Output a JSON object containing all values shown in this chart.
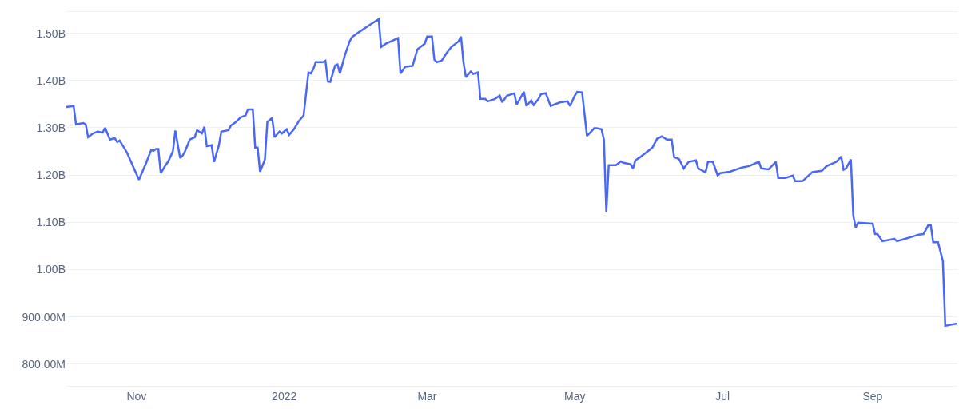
{
  "chart_data": {
    "type": "line",
    "x": [
      "2021-10-03",
      "2021-10-06",
      "2021-10-07",
      "2021-10-10",
      "2021-10-11",
      "2021-10-12",
      "2021-10-14",
      "2021-10-16",
      "2021-10-18",
      "2021-10-19",
      "2021-10-21",
      "2021-10-23",
      "2021-10-24",
      "2021-10-25",
      "2021-10-28",
      "2021-11-02",
      "2021-11-04",
      "2021-11-05",
      "2021-11-07",
      "2021-11-08",
      "2021-11-09",
      "2021-11-10",
      "2021-11-11",
      "2021-11-13",
      "2021-11-14",
      "2021-11-16",
      "2021-11-17",
      "2021-11-19",
      "2021-11-20",
      "2021-11-21",
      "2021-11-23",
      "2021-11-25",
      "2021-11-26",
      "2021-11-28",
      "2021-11-29",
      "2021-11-30",
      "2021-12-02",
      "2021-12-03",
      "2021-12-05",
      "2021-12-06",
      "2021-12-09",
      "2021-12-10",
      "2021-12-12",
      "2021-12-14",
      "2021-12-16",
      "2021-12-17",
      "2021-12-19",
      "2021-12-20",
      "2021-12-21",
      "2021-12-22",
      "2021-12-24",
      "2021-12-25",
      "2021-12-27",
      "2021-12-28",
      "2021-12-30",
      "2021-12-31",
      "2022-01-02",
      "2022-01-03",
      "2022-01-05",
      "2022-01-07",
      "2022-01-09",
      "2022-01-11",
      "2022-01-12",
      "2022-01-13",
      "2022-01-14",
      "2022-01-17",
      "2022-01-18",
      "2022-01-19",
      "2022-01-20",
      "2022-01-22",
      "2022-01-23",
      "2022-01-24",
      "2022-01-26",
      "2022-01-28",
      "2022-01-29",
      "2022-02-01",
      "2022-02-06",
      "2022-02-09",
      "2022-02-10",
      "2022-02-12",
      "2022-02-17",
      "2022-02-18",
      "2022-02-20",
      "2022-02-23",
      "2022-02-25",
      "2022-02-28",
      "2022-03-01",
      "2022-03-03",
      "2022-03-04",
      "2022-03-05",
      "2022-03-07",
      "2022-03-09",
      "2022-03-11",
      "2022-03-14",
      "2022-03-15",
      "2022-03-16",
      "2022-03-17",
      "2022-03-19",
      "2022-03-20",
      "2022-03-22",
      "2022-03-23",
      "2022-03-25",
      "2022-03-26",
      "2022-03-29",
      "2022-03-31",
      "2022-04-01",
      "2022-04-03",
      "2022-04-06",
      "2022-04-07",
      "2022-04-10",
      "2022-04-11",
      "2022-04-13",
      "2022-04-14",
      "2022-04-16",
      "2022-04-17",
      "2022-04-19",
      "2022-04-21",
      "2022-04-25",
      "2022-04-28",
      "2022-04-29",
      "2022-05-01",
      "2022-05-02",
      "2022-05-04",
      "2022-05-06",
      "2022-05-07",
      "2022-05-09",
      "2022-05-10",
      "2022-05-12",
      "2022-05-13",
      "2022-05-14",
      "2022-05-15",
      "2022-05-18",
      "2022-05-20",
      "2022-05-21",
      "2022-05-24",
      "2022-05-25",
      "2022-05-26",
      "2022-05-28",
      "2022-05-30",
      "2022-06-02",
      "2022-06-04",
      "2022-06-06",
      "2022-06-08",
      "2022-06-10",
      "2022-06-11",
      "2022-06-13",
      "2022-06-15",
      "2022-06-17",
      "2022-06-20",
      "2022-06-21",
      "2022-06-24",
      "2022-06-25",
      "2022-06-27",
      "2022-06-29",
      "2022-06-30",
      "2022-07-04",
      "2022-07-09",
      "2022-07-12",
      "2022-07-16",
      "2022-07-17",
      "2022-07-20",
      "2022-07-23",
      "2022-07-24",
      "2022-07-27",
      "2022-07-30",
      "2022-07-31",
      "2022-08-03",
      "2022-08-07",
      "2022-08-11",
      "2022-08-13",
      "2022-08-17",
      "2022-08-19",
      "2022-08-20",
      "2022-08-21",
      "2022-08-23",
      "2022-08-24",
      "2022-08-25",
      "2022-08-26",
      "2022-09-01",
      "2022-09-02",
      "2022-09-03",
      "2022-09-05",
      "2022-09-07",
      "2022-09-10",
      "2022-09-11",
      "2022-09-13",
      "2022-09-17",
      "2022-09-20",
      "2022-09-22",
      "2022-09-24",
      "2022-09-25",
      "2022-09-26",
      "2022-09-28",
      "2022-09-30",
      "2022-10-01",
      "2022-10-04",
      "2022-10-06"
    ],
    "values": [
      1344000000.0,
      1346000000.0,
      1307000000.0,
      1310000000.0,
      1307000000.0,
      1280000000.0,
      1288000000.0,
      1292000000.0,
      1290000000.0,
      1300000000.0,
      1275000000.0,
      1278000000.0,
      1270000000.0,
      1273000000.0,
      1248000000.0,
      1190000000.0,
      1214000000.0,
      1226000000.0,
      1253000000.0,
      1251000000.0,
      1255000000.0,
      1255000000.0,
      1204000000.0,
      1221000000.0,
      1228000000.0,
      1250000000.0,
      1294000000.0,
      1236000000.0,
      1241000000.0,
      1250000000.0,
      1275000000.0,
      1280000000.0,
      1295000000.0,
      1288000000.0,
      1302000000.0,
      1261000000.0,
      1263000000.0,
      1228000000.0,
      1263000000.0,
      1292000000.0,
      1295000000.0,
      1305000000.0,
      1312000000.0,
      1322000000.0,
      1326000000.0,
      1339000000.0,
      1339000000.0,
      1258000000.0,
      1258000000.0,
      1207000000.0,
      1233000000.0,
      1312000000.0,
      1321000000.0,
      1280000000.0,
      1292000000.0,
      1288000000.0,
      1297000000.0,
      1285000000.0,
      1297000000.0,
      1314000000.0,
      1326000000.0,
      1417000000.0,
      1415000000.0,
      1424000000.0,
      1439000000.0,
      1439000000.0,
      1442000000.0,
      1398000000.0,
      1397000000.0,
      1432000000.0,
      1434000000.0,
      1415000000.0,
      1453000000.0,
      1483000000.0,
      1492000000.0,
      1503000000.0,
      1520000000.0,
      1530000000.0,
      1471000000.0,
      1478000000.0,
      1490000000.0,
      1415000000.0,
      1429000000.0,
      1431000000.0,
      1466000000.0,
      1478000000.0,
      1493000000.0,
      1493000000.0,
      1444000000.0,
      1439000000.0,
      1442000000.0,
      1458000000.0,
      1471000000.0,
      1483000000.0,
      1493000000.0,
      1439000000.0,
      1407000000.0,
      1419000000.0,
      1414000000.0,
      1417000000.0,
      1361000000.0,
      1361000000.0,
      1356000000.0,
      1361000000.0,
      1368000000.0,
      1354000000.0,
      1368000000.0,
      1373000000.0,
      1349000000.0,
      1376000000.0,
      1346000000.0,
      1358000000.0,
      1348000000.0,
      1361000000.0,
      1371000000.0,
      1373000000.0,
      1346000000.0,
      1354000000.0,
      1356000000.0,
      1346000000.0,
      1368000000.0,
      1376000000.0,
      1375000000.0,
      1283000000.0,
      1288000000.0,
      1299000000.0,
      1299000000.0,
      1297000000.0,
      1275000000.0,
      1121000000.0,
      1221000000.0,
      1221000000.0,
      1229000000.0,
      1226000000.0,
      1223000000.0,
      1214000000.0,
      1231000000.0,
      1238000000.0,
      1246000000.0,
      1258000000.0,
      1277000000.0,
      1282000000.0,
      1275000000.0,
      1275000000.0,
      1238000000.0,
      1234000000.0,
      1214000000.0,
      1228000000.0,
      1231000000.0,
      1214000000.0,
      1206000000.0,
      1228000000.0,
      1228000000.0,
      1199000000.0,
      1204000000.0,
      1207000000.0,
      1216000000.0,
      1219000000.0,
      1228000000.0,
      1214000000.0,
      1212000000.0,
      1228000000.0,
      1194000000.0,
      1194000000.0,
      1199000000.0,
      1187000000.0,
      1187000000.0,
      1206000000.0,
      1209000000.0,
      1219000000.0,
      1228000000.0,
      1239000000.0,
      1211000000.0,
      1214000000.0,
      1233000000.0,
      1114000000.0,
      1089000000.0,
      1099000000.0,
      1097000000.0,
      1075000000.0,
      1075000000.0,
      1060000000.0,
      1062000000.0,
      1065000000.0,
      1060000000.0,
      1063000000.0,
      1069000000.0,
      1074000000.0,
      1075000000.0,
      1094000000.0,
      1094000000.0,
      1058000000.0,
      1058000000.0,
      1018000000.0,
      881000000.0,
      884000000.0,
      886000000.0
    ],
    "color": "#4a68f5",
    "xlim": [
      "2021-10-03",
      "2022-10-06"
    ],
    "xticks": [
      {
        "value": "2021-11-01",
        "label": "Nov"
      },
      {
        "value": "2022-01-01",
        "label": "2022"
      },
      {
        "value": "2022-03-01",
        "label": "Mar"
      },
      {
        "value": "2022-05-01",
        "label": "May"
      },
      {
        "value": "2022-07-01",
        "label": "Jul"
      },
      {
        "value": "2022-09-01",
        "label": "Sep"
      }
    ],
    "ylim": [
      754000000.0,
      1545000000.0
    ],
    "yticks": [
      {
        "value": 800000000.0,
        "label": "800.00M"
      },
      {
        "value": 900000000.0,
        "label": "900.00M"
      },
      {
        "value": 1000000000.0,
        "label": "1.00B"
      },
      {
        "value": 1100000000.0,
        "label": "1.10B"
      },
      {
        "value": 1200000000.0,
        "label": "1.20B"
      },
      {
        "value": 1300000000.0,
        "label": "1.30B"
      },
      {
        "value": 1400000000.0,
        "label": "1.40B"
      },
      {
        "value": 1500000000.0,
        "label": "1.50B"
      }
    ],
    "grid": "y",
    "marker": "none",
    "line_style": "solid"
  }
}
